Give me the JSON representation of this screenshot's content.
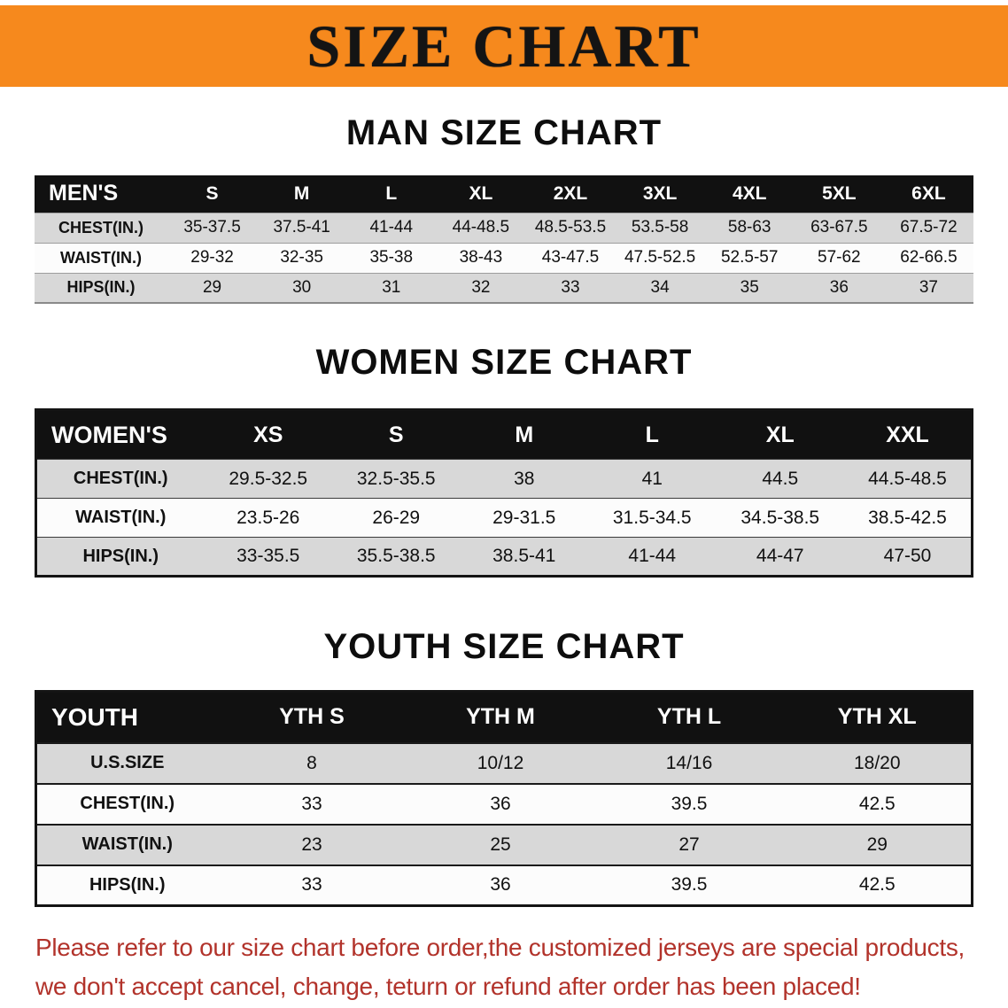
{
  "banner": {
    "title": "SIZE CHART",
    "bg_color": "#f6891d"
  },
  "sections": [
    {
      "id": "men",
      "heading": "MAN SIZE CHART",
      "table": {
        "header_label": "MEN'S",
        "columns": [
          "S",
          "M",
          "L",
          "XL",
          "2XL",
          "3XL",
          "4XL",
          "5XL",
          "6XL"
        ],
        "rows": [
          {
            "label": "CHEST(IN.)",
            "values": [
              "35-37.5",
              "37.5-41",
              "41-44",
              "44-48.5",
              "48.5-53.5",
              "53.5-58",
              "58-63",
              "63-67.5",
              "67.5-72"
            ]
          },
          {
            "label": "WAIST(IN.)",
            "values": [
              "29-32",
              "32-35",
              "35-38",
              "38-43",
              "43-47.5",
              "47.5-52.5",
              "52.5-57",
              "57-62",
              "62-66.5"
            ]
          },
          {
            "label": "HIPS(IN.)",
            "values": [
              "29",
              "30",
              "31",
              "32",
              "33",
              "34",
              "35",
              "36",
              "37"
            ]
          }
        ]
      }
    },
    {
      "id": "women",
      "heading": "WOMEN SIZE CHART",
      "table": {
        "header_label": "WOMEN'S",
        "columns": [
          "XS",
          "S",
          "M",
          "L",
          "XL",
          "XXL"
        ],
        "rows": [
          {
            "label": "CHEST(IN.)",
            "values": [
              "29.5-32.5",
              "32.5-35.5",
              "38",
              "41",
              "44.5",
              "44.5-48.5"
            ]
          },
          {
            "label": "WAIST(IN.)",
            "values": [
              "23.5-26",
              "26-29",
              "29-31.5",
              "31.5-34.5",
              "34.5-38.5",
              "38.5-42.5"
            ]
          },
          {
            "label": "HIPS(IN.)",
            "values": [
              "33-35.5",
              "35.5-38.5",
              "38.5-41",
              "41-44",
              "44-47",
              "47-50"
            ]
          }
        ]
      }
    },
    {
      "id": "youth",
      "heading": "YOUTH SIZE CHART",
      "table": {
        "header_label": "YOUTH",
        "columns": [
          "YTH S",
          "YTH M",
          "YTH L",
          "YTH XL"
        ],
        "rows": [
          {
            "label": "U.S.SIZE",
            "values": [
              "8",
              "10/12",
              "14/16",
              "18/20"
            ]
          },
          {
            "label": "CHEST(IN.)",
            "values": [
              "33",
              "36",
              "39.5",
              "42.5"
            ]
          },
          {
            "label": "WAIST(IN.)",
            "values": [
              "23",
              "25",
              "27",
              "29"
            ]
          },
          {
            "label": "HIPS(IN.)",
            "values": [
              "33",
              "36",
              "39.5",
              "42.5"
            ]
          }
        ]
      }
    }
  ],
  "footer": {
    "line1": "Please refer to our size chart before order,the customized jerseys are special products,",
    "line2": "we don't accept cancel, change, teturn or refund after order has been placed!",
    "text_color": "#b2332b"
  }
}
